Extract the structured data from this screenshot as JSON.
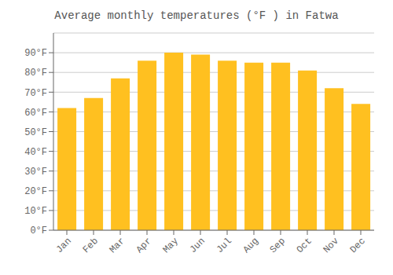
{
  "chart_data": {
    "type": "bar",
    "title": "Average monthly temperatures (°F ) in Fatwa",
    "categories": [
      "Jan",
      "Feb",
      "Mar",
      "Apr",
      "May",
      "Jun",
      "Jul",
      "Aug",
      "Sep",
      "Oct",
      "Nov",
      "Dec"
    ],
    "values": [
      62,
      67,
      77,
      86,
      90,
      89,
      86,
      85,
      85,
      81,
      72,
      64
    ],
    "color": "#FFC020",
    "ylim": [
      0,
      100
    ],
    "yticks": [
      {
        "value": 0,
        "label": "0°F"
      },
      {
        "value": 10,
        "label": "10°F"
      },
      {
        "value": 20,
        "label": "20°F"
      },
      {
        "value": 30,
        "label": "30°F"
      },
      {
        "value": 40,
        "label": "40°F"
      },
      {
        "value": 50,
        "label": "50°F"
      },
      {
        "value": 60,
        "label": "60°F"
      },
      {
        "value": 70,
        "label": "70°F"
      },
      {
        "value": 80,
        "label": "80°F"
      },
      {
        "value": 90,
        "label": "90°F"
      }
    ],
    "grid": true
  }
}
